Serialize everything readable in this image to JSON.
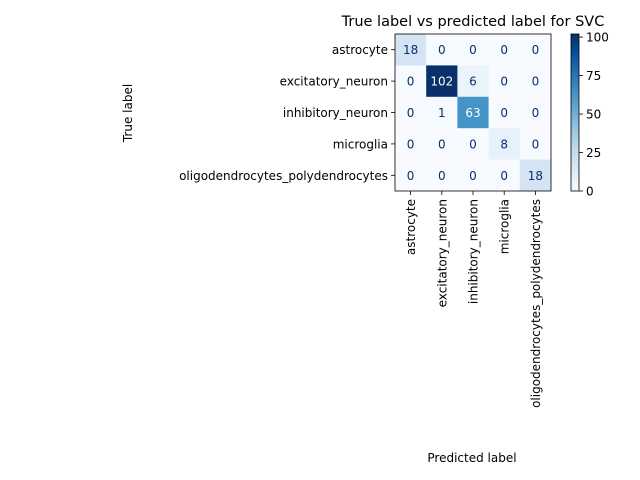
{
  "chart_data": {
    "type": "heatmap",
    "title": "True label vs predicted label for SVC",
    "xlabel": "Predicted label",
    "ylabel": "True label",
    "row_labels": [
      "astrocyte",
      "excitatory_neuron",
      "inhibitory_neuron",
      "microglia",
      "oligodendrocytes_polydendrocytes"
    ],
    "col_labels": [
      "astrocyte",
      "excitatory_neuron",
      "inhibitory_neuron",
      "microglia",
      "oligodendrocytes_polydendrocytes"
    ],
    "values": [
      [
        18,
        0,
        0,
        0,
        0
      ],
      [
        0,
        102,
        6,
        0,
        0
      ],
      [
        0,
        1,
        63,
        0,
        0
      ],
      [
        0,
        0,
        0,
        8,
        0
      ],
      [
        0,
        0,
        0,
        0,
        18
      ]
    ],
    "colormap": "Blues",
    "colorbar": {
      "min": 0,
      "max": 102,
      "ticks": [
        0,
        25,
        50,
        75,
        100
      ]
    }
  }
}
